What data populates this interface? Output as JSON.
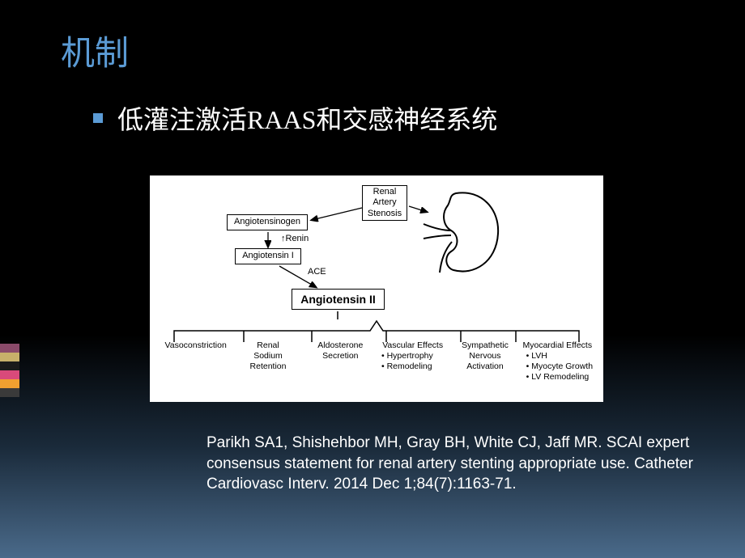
{
  "slide": {
    "title": "机制",
    "bullet_text": "低灌注激活RAAS和交感神经系统",
    "title_color": "#5b9bd5",
    "text_color": "#ffffff",
    "bullet_color": "#5b9bd5",
    "bg_gradient_top": "#000000",
    "bg_gradient_bottom": "#4a6a8a"
  },
  "diagram": {
    "bg": "#ffffff",
    "nodes": {
      "renal_artery_stenosis": "Renal\nArtery\nStenosis",
      "angiotensinogen": "Angiotensinogen",
      "renin": "Renin",
      "angiotensin1": "Angiotensin I",
      "ace": "ACE",
      "angiotensin2": "Angiotensin II"
    },
    "effects": [
      {
        "label": "Vasoconstriction",
        "sub": []
      },
      {
        "label": "Renal\nSodium\nRetention",
        "sub": []
      },
      {
        "label": "Aldosterone\nSecretion",
        "sub": []
      },
      {
        "label": "Vascular Effects",
        "sub": [
          "Hypertrophy",
          "Remodeling"
        ]
      },
      {
        "label": "Sympathetic\nNervous\nActivation",
        "sub": []
      },
      {
        "label": "Myocardial Effects",
        "sub": [
          "LVH",
          "Myocyte Growth",
          "LV Remodeling"
        ]
      }
    ],
    "kidney_stroke": "#000000",
    "arrow_color": "#000000",
    "box_border": "#000000",
    "font_color": "#000000"
  },
  "citation": "Parikh SA1, Shishehbor MH, Gray BH, White CJ, Jaff MR. SCAI expert consensus statement for renal artery stenting appropriate use. Catheter Cardiovasc Interv. 2014 Dec 1;84(7):1163-71.",
  "accent_bars": [
    {
      "h": 11,
      "c": "#8a4a6a"
    },
    {
      "h": 11,
      "c": "#c7b06a"
    },
    {
      "h": 11,
      "c": "#1a1a1a"
    },
    {
      "h": 11,
      "c": "#d94a7a"
    },
    {
      "h": 11,
      "c": "#f0a030"
    },
    {
      "h": 11,
      "c": "#3a3a3a"
    }
  ]
}
